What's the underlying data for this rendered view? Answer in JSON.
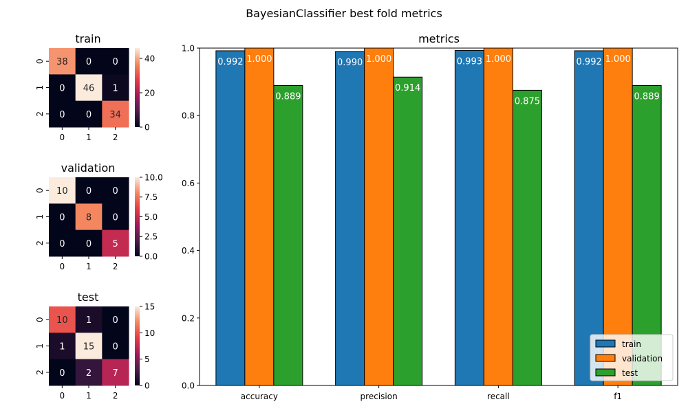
{
  "title": "BayesianClassifier best fold metrics",
  "colors": {
    "train": "#1f77b4",
    "validation": "#ff7f0e",
    "test": "#2ca02c"
  },
  "chart_data": [
    {
      "type": "heatmap",
      "title": "train",
      "row_labels": [
        "0",
        "1",
        "2"
      ],
      "col_labels": [
        "0",
        "1",
        "2"
      ],
      "values": [
        [
          38,
          0,
          0
        ],
        [
          0,
          46,
          1
        ],
        [
          0,
          0,
          34
        ]
      ],
      "colorbar_range": [
        0,
        46
      ],
      "colorbar_ticks": [
        "0",
        "20",
        "40"
      ],
      "colormap": "rocket"
    },
    {
      "type": "heatmap",
      "title": "validation",
      "row_labels": [
        "0",
        "1",
        "2"
      ],
      "col_labels": [
        "0",
        "1",
        "2"
      ],
      "values": [
        [
          10,
          0,
          0
        ],
        [
          0,
          8,
          0
        ],
        [
          0,
          0,
          5
        ]
      ],
      "colorbar_range": [
        0,
        10
      ],
      "colorbar_ticks": [
        "0.0",
        "2.5",
        "5.0",
        "7.5",
        "10.0"
      ],
      "colormap": "rocket"
    },
    {
      "type": "heatmap",
      "title": "test",
      "row_labels": [
        "0",
        "1",
        "2"
      ],
      "col_labels": [
        "0",
        "1",
        "2"
      ],
      "values": [
        [
          10,
          1,
          0
        ],
        [
          1,
          15,
          0
        ],
        [
          0,
          2,
          7
        ]
      ],
      "colorbar_range": [
        0,
        15
      ],
      "colorbar_ticks": [
        "0",
        "5",
        "10",
        "15"
      ],
      "colormap": "rocket"
    },
    {
      "type": "bar",
      "title": "metrics",
      "categories": [
        "accuracy",
        "precision",
        "recall",
        "f1"
      ],
      "series": [
        {
          "name": "train",
          "values": [
            0.992,
            0.99,
            0.993,
            0.992
          ],
          "labels": [
            "0.992",
            "0.990",
            "0.993",
            "0.992"
          ]
        },
        {
          "name": "validation",
          "values": [
            1.0,
            1.0,
            1.0,
            1.0
          ],
          "labels": [
            "1.000",
            "1.000",
            "1.000",
            "1.000"
          ]
        },
        {
          "name": "test",
          "values": [
            0.889,
            0.914,
            0.875,
            0.889
          ],
          "labels": [
            "0.889",
            "0.914",
            "0.875",
            "0.889"
          ]
        }
      ],
      "ylim": [
        0,
        1
      ],
      "yticks": [
        "0.0",
        "0.2",
        "0.4",
        "0.6",
        "0.8",
        "1.0"
      ],
      "legend": "lower-right",
      "grid": false
    }
  ]
}
